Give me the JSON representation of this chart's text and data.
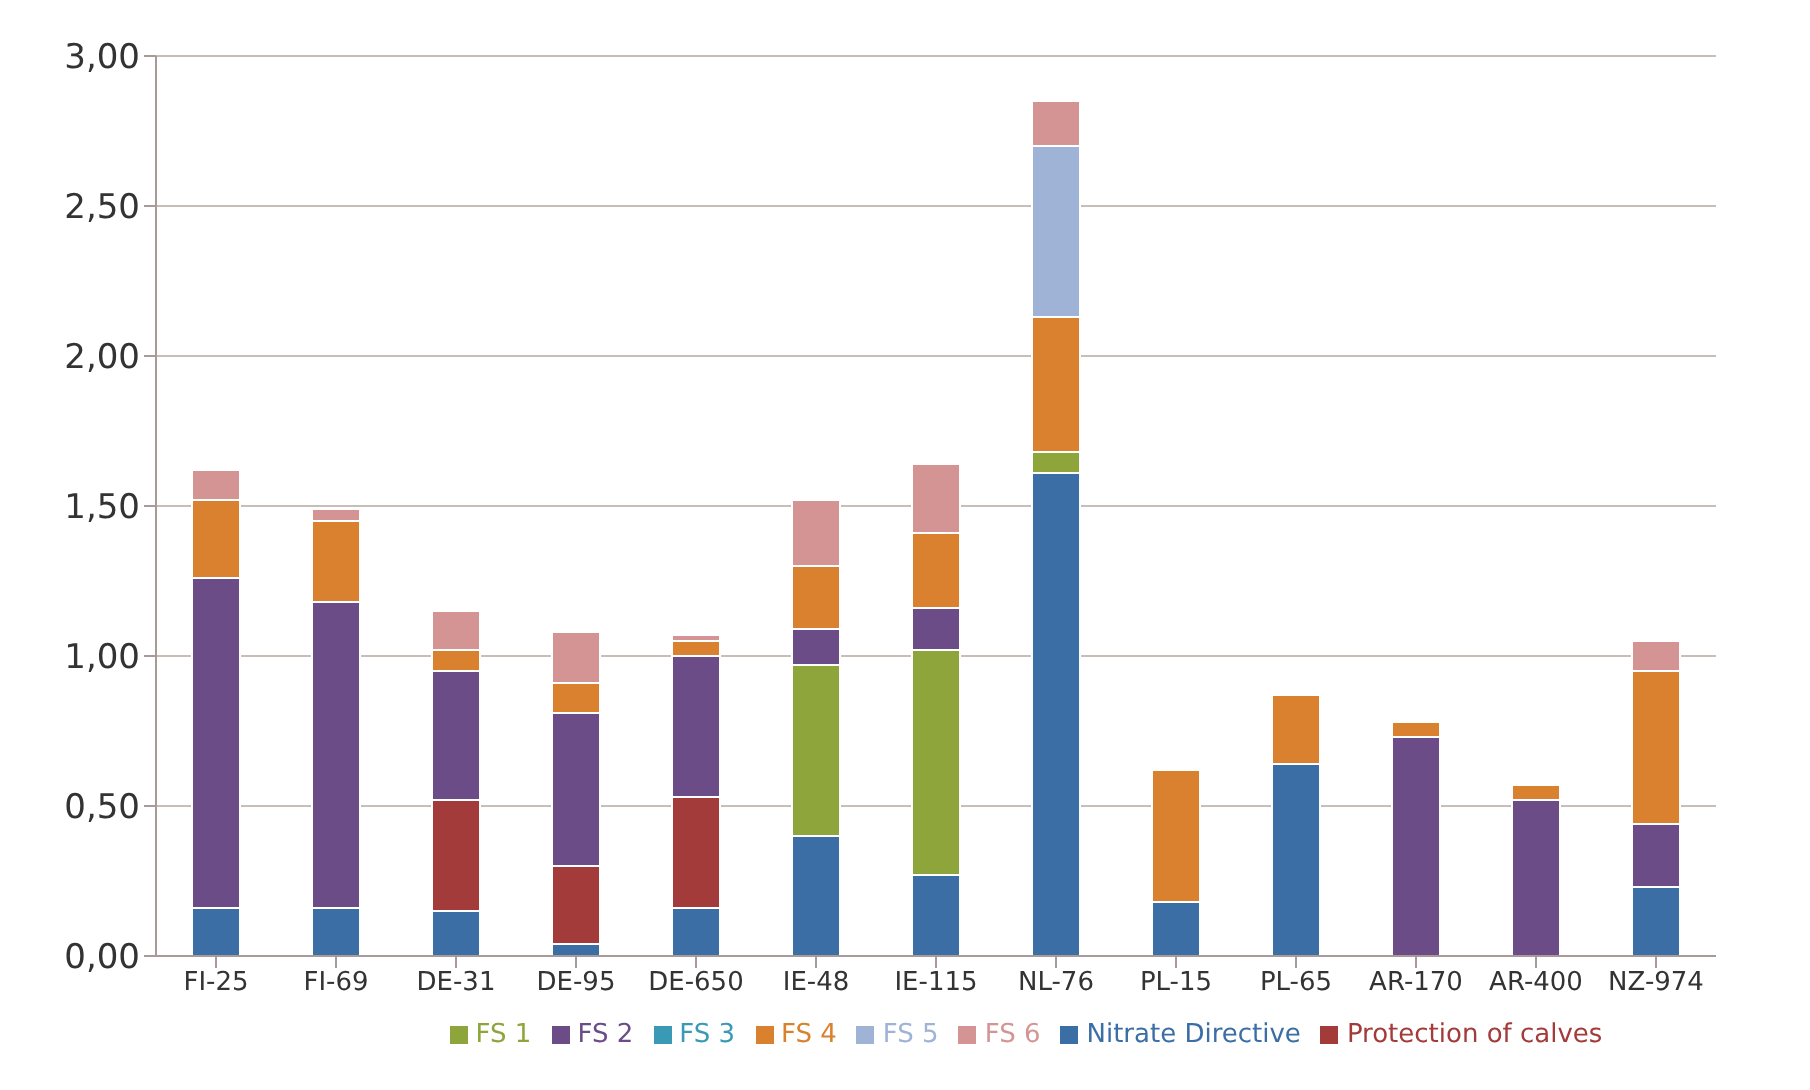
{
  "chart_data": {
    "type": "bar",
    "stacked": true,
    "categories": [
      "FI-25",
      "FI-69",
      "DE-31",
      "DE-95",
      "DE-650",
      "IE-48",
      "IE-115",
      "NL-76",
      "PL-15",
      "PL-65",
      "AR-170",
      "AR-400",
      "NZ-974"
    ],
    "series": [
      {
        "name": "Nitrate Directive",
        "color": "#3b6ea5",
        "values": [
          0.16,
          0.16,
          0.15,
          0.04,
          0.16,
          0.4,
          0.27,
          1.61,
          0.18,
          0.64,
          0,
          0,
          0.23
        ]
      },
      {
        "name": "Protection of calves",
        "color": "#a33b3a",
        "values": [
          0,
          0,
          0.37,
          0.26,
          0.37,
          0,
          0,
          0,
          0,
          0,
          0,
          0,
          0
        ]
      },
      {
        "name": "FS 1",
        "color": "#8ea53c",
        "values": [
          0,
          0,
          0,
          0,
          0,
          0.57,
          0.75,
          0.07,
          0,
          0,
          0,
          0,
          0
        ]
      },
      {
        "name": "FS 2",
        "color": "#6b4c87",
        "values": [
          1.1,
          1.02,
          0.43,
          0.51,
          0.47,
          0.12,
          0.14,
          0,
          0,
          0,
          0.73,
          0.52,
          0.21
        ]
      },
      {
        "name": "FS 3",
        "color": "#3a9ab5",
        "values": [
          0,
          0,
          0,
          0,
          0,
          0,
          0,
          0,
          0,
          0,
          0,
          0,
          0
        ]
      },
      {
        "name": "FS 4",
        "color": "#d9812e",
        "values": [
          0.26,
          0.27,
          0.07,
          0.1,
          0.05,
          0.21,
          0.25,
          0.45,
          0.44,
          0.23,
          0.05,
          0.05,
          0.51
        ]
      },
      {
        "name": "FS 5",
        "color": "#9fb3d6",
        "values": [
          0,
          0,
          0,
          0,
          0,
          0,
          0,
          0.57,
          0,
          0,
          0,
          0,
          0
        ]
      },
      {
        "name": "FS 6",
        "color": "#d49494",
        "values": [
          0.1,
          0.04,
          0.13,
          0.17,
          0.02,
          0.22,
          0.23,
          0.15,
          0,
          0,
          0,
          0,
          0.1
        ]
      }
    ],
    "ylim": [
      0,
      3
    ],
    "yticks": [
      {
        "value": 0,
        "label": "0,00"
      },
      {
        "value": 0.5,
        "label": "0,50"
      },
      {
        "value": 1,
        "label": "1,00"
      },
      {
        "value": 1.5,
        "label": "1,50"
      },
      {
        "value": 2,
        "label": "2,00"
      },
      {
        "value": 2.5,
        "label": "2,50"
      },
      {
        "value": 3,
        "label": "3,00"
      }
    ],
    "grid": "y",
    "legend": "bottom"
  }
}
